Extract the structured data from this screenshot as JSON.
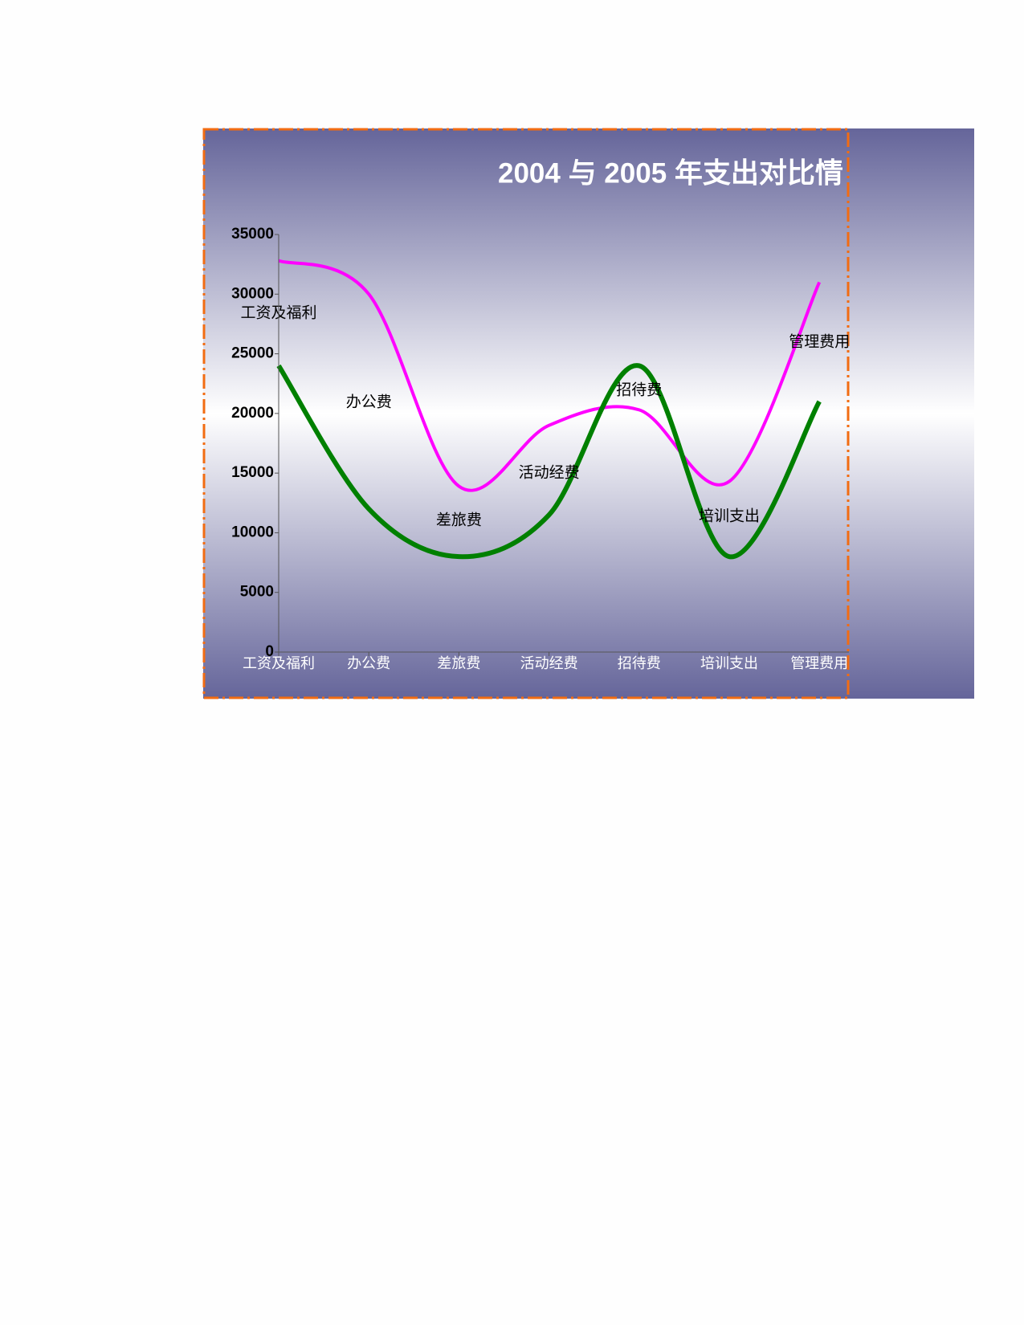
{
  "chart_data": {
    "type": "line",
    "title": "2004 与 2005 年支出对比情",
    "categories": [
      "工资及福利",
      "办公费",
      "差旅费",
      "活动经费",
      "招待费",
      "培训支出",
      "管理费用"
    ],
    "series": [
      {
        "color": "#ff00ff",
        "values": [
          32800,
          30000,
          13900,
          19000,
          20300,
          14300,
          31000
        ]
      },
      {
        "color": "#008000",
        "values": [
          24000,
          12000,
          8000,
          11500,
          24000,
          8000,
          21000
        ]
      }
    ],
    "ylim": [
      0,
      35000
    ],
    "yticks": [
      0,
      5000,
      10000,
      15000,
      20000,
      25000,
      30000,
      35000
    ],
    "smooth": true
  }
}
